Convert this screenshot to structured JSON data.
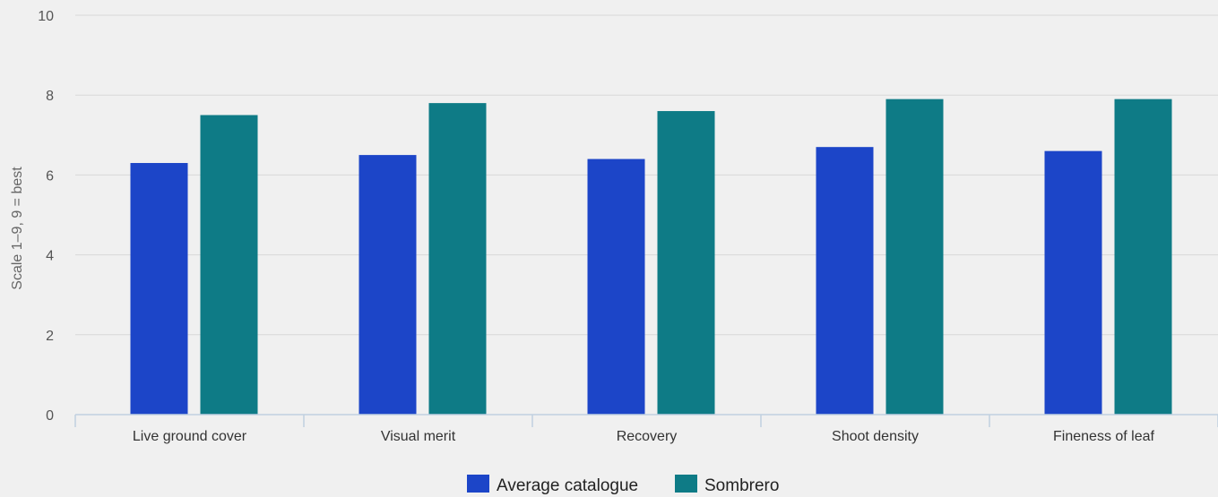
{
  "chart_data": {
    "type": "bar",
    "categories": [
      "Live ground cover",
      "Visual merit",
      "Recovery",
      "Shoot density",
      "Fineness of leaf"
    ],
    "series": [
      {
        "name": "Average catalogue",
        "values": [
          6.3,
          6.5,
          6.4,
          6.7,
          6.6
        ],
        "color": "#1c45c8"
      },
      {
        "name": "Sombrero",
        "values": [
          7.5,
          7.8,
          7.6,
          7.9,
          7.9
        ],
        "color": "#0e7b86"
      }
    ],
    "ylabel": "Scale 1–9, 9 = best",
    "xlabel": "",
    "ylim": [
      0,
      10
    ],
    "yticks": [
      0,
      2,
      4,
      6,
      8,
      10
    ],
    "grid": true,
    "legend_position": "bottom-center"
  }
}
